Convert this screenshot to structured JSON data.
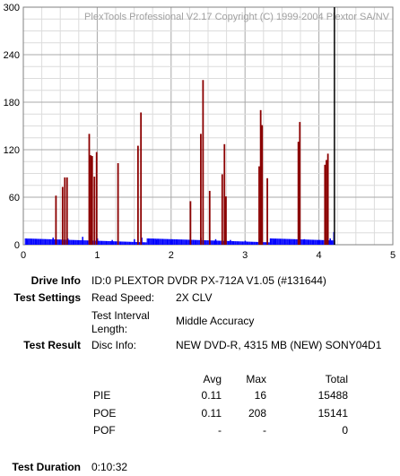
{
  "chart_data": {
    "type": "bar",
    "title": "PlexTools Professional V2.17 Copyright (C) 1999-2004 Plextor SA/NV",
    "xlabel": "",
    "ylabel": "",
    "xlim": [
      0,
      5
    ],
    "ylim": [
      0,
      300
    ],
    "x_ticks": [
      "0",
      "1",
      "2",
      "3",
      "4",
      "5"
    ],
    "y_ticks": [
      "0",
      "60",
      "120",
      "180",
      "240",
      "300"
    ],
    "grid": true,
    "legend": "none",
    "end_marker_x": 4.21,
    "series": [
      {
        "color": "#8b0000",
        "points": [
          [
            0.44,
            62
          ],
          [
            0.53,
            73
          ],
          [
            0.56,
            85
          ],
          [
            0.59,
            85
          ],
          [
            0.89,
            140
          ],
          [
            0.91,
            113
          ],
          [
            0.93,
            112
          ],
          [
            0.96,
            86
          ],
          [
            0.99,
            117
          ],
          [
            1.28,
            103
          ],
          [
            1.55,
            125
          ],
          [
            1.59,
            167
          ],
          [
            2.26,
            55
          ],
          [
            2.4,
            140
          ],
          [
            2.43,
            208
          ],
          [
            2.52,
            68
          ],
          [
            2.69,
            89
          ],
          [
            2.72,
            127
          ],
          [
            2.74,
            61
          ],
          [
            3.19,
            99
          ],
          [
            3.21,
            170
          ],
          [
            3.23,
            151
          ],
          [
            3.3,
            84
          ],
          [
            3.72,
            130
          ],
          [
            3.74,
            155
          ],
          [
            4.08,
            101
          ],
          [
            4.1,
            107
          ],
          [
            4.12,
            115
          ]
        ]
      },
      {
        "color": "#0000ff",
        "points": [
          [
            0.05,
            6
          ],
          [
            0.2,
            7
          ],
          [
            0.4,
            9
          ],
          [
            0.6,
            8
          ],
          [
            0.8,
            10
          ],
          [
            0.9,
            12
          ],
          [
            1.0,
            8
          ],
          [
            1.2,
            6
          ],
          [
            1.5,
            7
          ],
          [
            1.6,
            9
          ],
          [
            1.8,
            6
          ],
          [
            2.0,
            5
          ],
          [
            2.3,
            6
          ],
          [
            2.4,
            9
          ],
          [
            2.6,
            7
          ],
          [
            2.8,
            6
          ],
          [
            3.0,
            5
          ],
          [
            3.2,
            8
          ],
          [
            3.4,
            6
          ],
          [
            3.6,
            5
          ],
          [
            3.8,
            7
          ],
          [
            4.0,
            6
          ],
          [
            4.15,
            8
          ],
          [
            4.2,
            16
          ]
        ]
      }
    ]
  },
  "info": {
    "drive_label": "Drive Info",
    "drive_value": "ID:0 PLEXTOR DVDR PX-712A V1.05 (#131644)",
    "settings_label": "Test Settings",
    "read_speed_label": "Read Speed:",
    "read_speed_value": "2X CLV",
    "interval_label_line1": "Test Interval",
    "interval_label_line2": "Length:",
    "interval_value": "Middle Accuracy",
    "result_label": "Test Result",
    "disc_label": "Disc Info:",
    "disc_value": "NEW DVD-R, 4315 MB (NEW) SONY04D1",
    "duration_label": "Test Duration",
    "duration_value": "0:10:32"
  },
  "stats": {
    "headers": [
      "Avg",
      "Max",
      "Total"
    ],
    "rows": [
      {
        "name": "PIE",
        "avg": "0.11",
        "max": "16",
        "total": "15488"
      },
      {
        "name": "POE",
        "avg": "0.11",
        "max": "208",
        "total": "15141"
      },
      {
        "name": "POF",
        "avg": "-",
        "max": "-",
        "total": "0"
      }
    ]
  }
}
